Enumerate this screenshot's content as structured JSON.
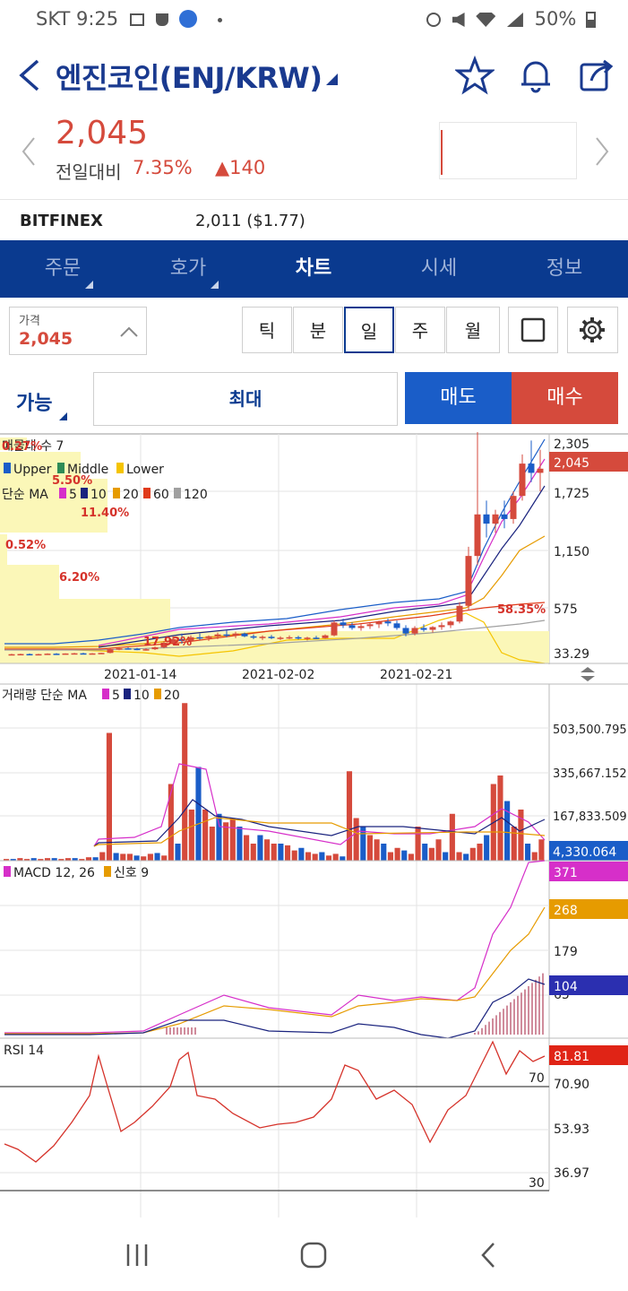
{
  "status": {
    "carrier": "SKT",
    "time": "9:25",
    "battery": "50%"
  },
  "header": {
    "title": "엔진코인(ENJ/KRW)"
  },
  "quote": {
    "price": "2,045",
    "change_label": "전일대비",
    "change_pct": "7.35%",
    "change_val": "▲140"
  },
  "exchange": {
    "name": "BITFINEX",
    "price": "2,011 ($1.77)"
  },
  "tabs": [
    {
      "label": "주문",
      "active": false
    },
    {
      "label": "호가",
      "active": false
    },
    {
      "label": "차트",
      "active": true
    },
    {
      "label": "시세",
      "active": false
    },
    {
      "label": "정보",
      "active": false
    }
  ],
  "price_input": {
    "label": "가격",
    "value": "2,045"
  },
  "period": {
    "options": [
      "틱",
      "분",
      "일",
      "주",
      "월"
    ],
    "selected": "일"
  },
  "order": {
    "avail_label": "가능",
    "max_label": "최대",
    "sell_label": "매도",
    "buy_label": "매수"
  },
  "colors": {
    "accent": "#0a3a8f",
    "up": "#d54a3c",
    "down": "#1a5dc8",
    "ma5": "#d62fc9",
    "ma10": "#1a237e",
    "ma20": "#e69b00",
    "ma60": "#e03a1a",
    "ma120": "#a0a0a0"
  },
  "chart_data": [
    {
      "type": "candlestick",
      "legend": [
        "매물대 수 7",
        "Upper",
        "Middle",
        "Lower",
        "단순 MA",
        "5",
        "10",
        "20",
        "60",
        "120"
      ],
      "y_ticks": [
        "2,305",
        "1,725",
        "1,150",
        "575",
        "33.29"
      ],
      "current": "2,045",
      "x_ticks": [
        "2021-01-14",
        "2021-02-02",
        "2021-02-21"
      ],
      "volume_profile_labels": [
        "0.27%",
        "5.50%",
        "11.40%",
        "0.52%",
        "6.20%",
        "17.92%",
        "58.35%"
      ],
      "ohlc": [
        [
          34,
          40,
          30,
          36
        ],
        [
          36,
          42,
          32,
          38
        ],
        [
          38,
          44,
          33,
          35
        ],
        [
          35,
          40,
          31,
          37
        ],
        [
          37,
          45,
          34,
          42
        ],
        [
          42,
          48,
          38,
          40
        ],
        [
          40,
          46,
          36,
          44
        ],
        [
          44,
          50,
          40,
          46
        ],
        [
          46,
          52,
          42,
          43
        ],
        [
          43,
          48,
          39,
          45
        ],
        [
          45,
          52,
          42,
          50
        ],
        [
          50,
          100,
          45,
          90
        ],
        [
          90,
          112,
          80,
          100
        ],
        [
          100,
          110,
          85,
          95
        ],
        [
          95,
          105,
          80,
          88
        ],
        [
          88,
          100,
          75,
          90
        ],
        [
          90,
          120,
          82,
          110
        ],
        [
          110,
          180,
          100,
          160
        ],
        [
          160,
          230,
          140,
          200
        ],
        [
          200,
          260,
          150,
          180
        ],
        [
          180,
          240,
          160,
          220
        ],
        [
          220,
          260,
          190,
          210
        ],
        [
          210,
          240,
          180,
          230
        ],
        [
          230,
          270,
          200,
          250
        ],
        [
          250,
          290,
          220,
          240
        ],
        [
          240,
          280,
          210,
          260
        ],
        [
          260,
          270,
          220,
          230
        ],
        [
          230,
          250,
          200,
          215
        ],
        [
          215,
          240,
          190,
          225
        ],
        [
          225,
          245,
          200,
          210
        ],
        [
          210,
          230,
          190,
          215
        ],
        [
          215,
          240,
          200,
          220
        ],
        [
          220,
          235,
          195,
          205
        ],
        [
          205,
          225,
          185,
          215
        ],
        [
          215,
          235,
          200,
          210
        ],
        [
          210,
          250,
          205,
          240
        ],
        [
          240,
          400,
          230,
          380
        ],
        [
          380,
          420,
          320,
          350
        ],
        [
          350,
          380,
          300,
          320
        ],
        [
          320,
          360,
          290,
          340
        ],
        [
          340,
          380,
          310,
          360
        ],
        [
          360,
          400,
          320,
          390
        ],
        [
          390,
          420,
          340,
          370
        ],
        [
          370,
          400,
          300,
          320
        ],
        [
          320,
          350,
          230,
          260
        ],
        [
          260,
          340,
          240,
          320
        ],
        [
          320,
          360,
          280,
          300
        ],
        [
          300,
          340,
          270,
          330
        ],
        [
          330,
          380,
          300,
          350
        ],
        [
          350,
          400,
          320,
          390
        ],
        [
          390,
          600,
          370,
          560
        ],
        [
          560,
          1200,
          520,
          1100
        ],
        [
          1100,
          2480,
          1000,
          1550
        ],
        [
          1550,
          1700,
          1300,
          1450
        ],
        [
          1450,
          1600,
          1350,
          1550
        ],
        [
          1550,
          1700,
          1400,
          1500
        ],
        [
          1500,
          1800,
          1450,
          1750
        ],
        [
          1750,
          2200,
          1700,
          2100
        ],
        [
          2100,
          2350,
          1900,
          2000
        ],
        [
          2000,
          2250,
          1800,
          2045
        ]
      ]
    },
    {
      "type": "bar",
      "title": "거래량 단순 MA",
      "legend": [
        "5",
        "10",
        "20"
      ],
      "y_ticks": [
        "503,500.795",
        "335,667.152",
        "167,833.509"
      ],
      "current": "4,330.064"
    },
    {
      "type": "line",
      "title": "MACD 12, 26",
      "legend": [
        "신호 9"
      ],
      "y_ticks": [
        "179",
        "65"
      ],
      "badges": [
        "371",
        "268",
        "104"
      ]
    },
    {
      "type": "line",
      "title": "RSI 14",
      "y_ticks": [
        "70.90",
        "53.93",
        "36.97"
      ],
      "levels": [
        "70",
        "30"
      ],
      "current": "81.81"
    }
  ]
}
